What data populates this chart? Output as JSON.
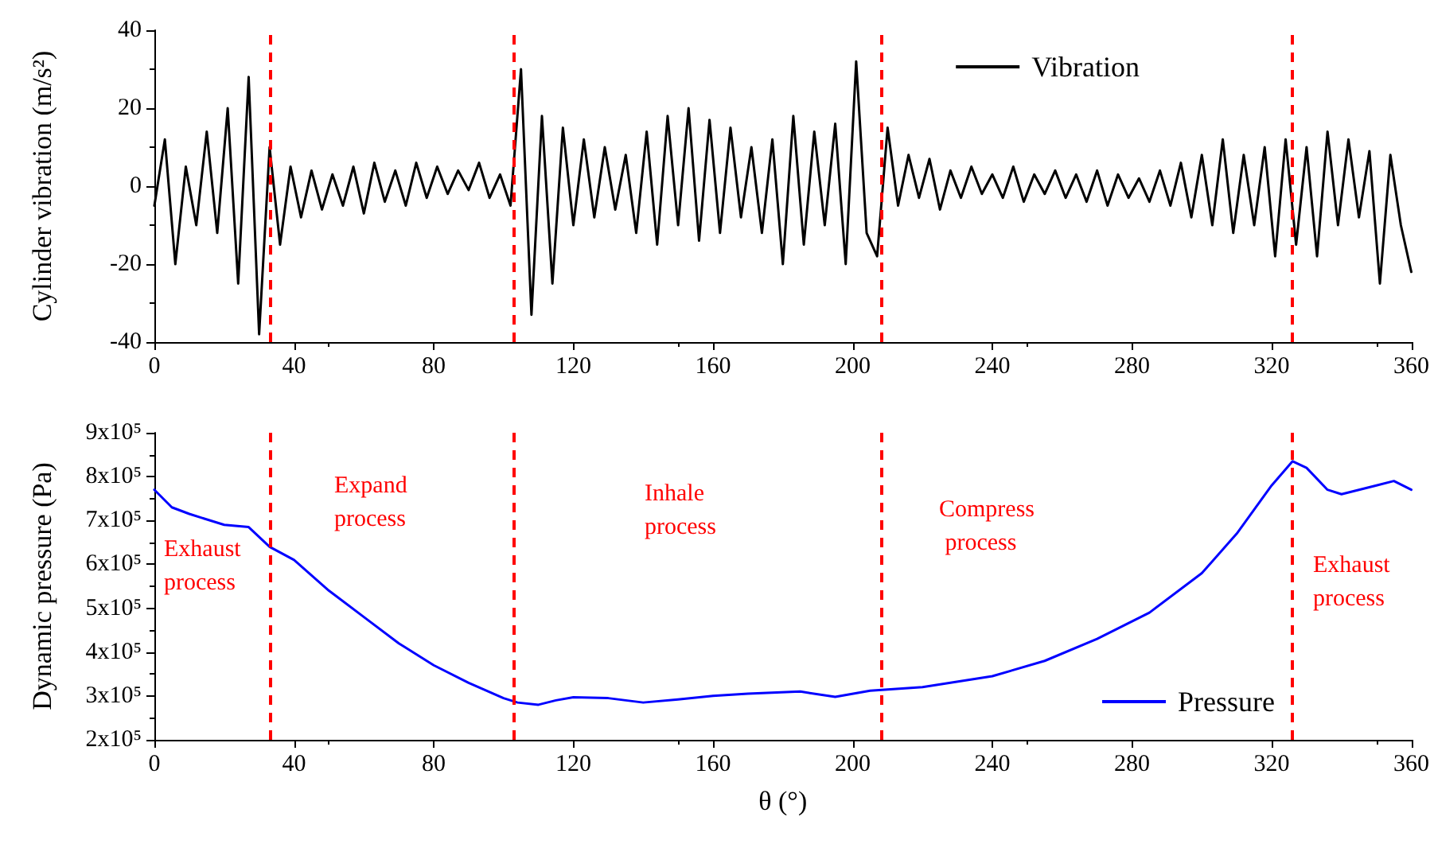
{
  "chart_data": [
    {
      "type": "line",
      "ylabel": "Cylinder vibration (m/s²)",
      "xlim": [
        0,
        360
      ],
      "xticks": [
        0,
        40,
        80,
        120,
        160,
        200,
        240,
        280,
        320,
        360
      ],
      "ylim": [
        -40,
        40
      ],
      "yticks": [
        -40,
        -20,
        0,
        20,
        40
      ],
      "legend": "top right",
      "grid": false,
      "marker": "none",
      "line_style": "solid",
      "series": [
        {
          "name": "Vibration",
          "color": "#000000",
          "x": [
            0,
            3,
            6,
            9,
            12,
            15,
            18,
            21,
            24,
            27,
            30,
            33,
            36,
            39,
            42,
            45,
            48,
            51,
            54,
            57,
            60,
            63,
            66,
            69,
            72,
            75,
            78,
            81,
            84,
            87,
            90,
            93,
            96,
            99,
            102,
            105,
            108,
            111,
            114,
            117,
            120,
            123,
            126,
            129,
            132,
            135,
            138,
            141,
            144,
            147,
            150,
            153,
            156,
            159,
            162,
            165,
            168,
            171,
            174,
            177,
            180,
            183,
            186,
            189,
            192,
            195,
            198,
            201,
            204,
            207,
            210,
            213,
            216,
            219,
            222,
            225,
            228,
            231,
            234,
            237,
            240,
            243,
            246,
            249,
            252,
            255,
            258,
            261,
            264,
            267,
            270,
            273,
            276,
            279,
            282,
            285,
            288,
            291,
            294,
            297,
            300,
            303,
            306,
            309,
            312,
            315,
            318,
            321,
            324,
            327,
            330,
            333,
            336,
            339,
            342,
            345,
            348,
            351,
            354,
            357,
            360
          ],
          "values": [
            -5,
            12,
            -20,
            5,
            -10,
            14,
            -12,
            20,
            -25,
            28,
            -38,
            10,
            -15,
            5,
            -8,
            4,
            -6,
            3,
            -5,
            5,
            -7,
            6,
            -4,
            4,
            -5,
            6,
            -3,
            5,
            -2,
            4,
            -1,
            6,
            -3,
            3,
            -5,
            30,
            -33,
            18,
            -25,
            15,
            -10,
            12,
            -8,
            10,
            -6,
            8,
            -12,
            14,
            -15,
            18,
            -10,
            20,
            -14,
            17,
            -12,
            15,
            -8,
            10,
            -12,
            12,
            -20,
            18,
            -15,
            14,
            -10,
            16,
            -20,
            32,
            -12,
            -18,
            15,
            -5,
            8,
            -3,
            7,
            -6,
            4,
            -3,
            5,
            -2,
            3,
            -3,
            5,
            -4,
            3,
            -2,
            4,
            -3,
            3,
            -4,
            4,
            -5,
            3,
            -3,
            2,
            -4,
            4,
            -5,
            6,
            -8,
            8,
            -10,
            12,
            -12,
            8,
            -10,
            10,
            -18,
            12,
            -15,
            10,
            -18,
            14,
            -10,
            12,
            -8,
            9,
            -25,
            8,
            -10,
            -22
          ]
        }
      ],
      "ref_lines": [
        {
          "axis": "x",
          "value": 33,
          "color": "#ff0000",
          "line_style": "dashed"
        },
        {
          "axis": "x",
          "value": 103,
          "color": "#ff0000",
          "line_style": "dashed"
        },
        {
          "axis": "x",
          "value": 208,
          "color": "#ff0000",
          "line_style": "dashed"
        },
        {
          "axis": "x",
          "value": 326,
          "color": "#ff0000",
          "line_style": "dashed"
        }
      ]
    },
    {
      "type": "line",
      "xlabel": "θ (°)",
      "ylabel": "Dynamic pressure (Pa)",
      "xlim": [
        0,
        360
      ],
      "xticks": [
        0,
        40,
        80,
        120,
        160,
        200,
        240,
        280,
        320,
        360
      ],
      "ylim": [
        200000,
        900000
      ],
      "yticks": [
        {
          "value": 200000,
          "label": "2x10⁵"
        },
        {
          "value": 300000,
          "label": "3x10⁵"
        },
        {
          "value": 400000,
          "label": "4x10⁵"
        },
        {
          "value": 500000,
          "label": "5x10⁵"
        },
        {
          "value": 600000,
          "label": "6x10⁵"
        },
        {
          "value": 700000,
          "label": "7x10⁵"
        },
        {
          "value": 800000,
          "label": "8x10⁵"
        },
        {
          "value": 900000,
          "label": "9x10⁵"
        }
      ],
      "legend": "bottom right",
      "grid": false,
      "marker": "none",
      "line_style": "solid",
      "series": [
        {
          "name": "Pressure",
          "color": "#0000ff",
          "x": [
            0,
            5,
            10,
            20,
            27,
            33,
            40,
            50,
            60,
            70,
            80,
            90,
            100,
            104,
            110,
            115,
            120,
            130,
            140,
            150,
            160,
            170,
            185,
            195,
            205,
            220,
            240,
            255,
            270,
            285,
            300,
            310,
            320,
            326,
            330,
            336,
            340,
            350,
            355,
            360
          ],
          "values": [
            770000,
            730000,
            715000,
            690000,
            685000,
            640000,
            610000,
            540000,
            480000,
            420000,
            370000,
            330000,
            295000,
            285000,
            280000,
            290000,
            297000,
            295000,
            285000,
            292000,
            300000,
            305000,
            310000,
            298000,
            312000,
            320000,
            345000,
            380000,
            430000,
            490000,
            580000,
            670000,
            780000,
            835000,
            820000,
            770000,
            760000,
            780000,
            790000,
            770000
          ]
        }
      ],
      "ref_lines": [
        {
          "axis": "x",
          "value": 33,
          "color": "#ff0000",
          "line_style": "dashed"
        },
        {
          "axis": "x",
          "value": 103,
          "color": "#ff0000",
          "line_style": "dashed"
        },
        {
          "axis": "x",
          "value": 208,
          "color": "#ff0000",
          "line_style": "dashed"
        },
        {
          "axis": "x",
          "value": 326,
          "color": "#ff0000",
          "line_style": "dashed"
        }
      ],
      "annotations": [
        "Exhaust process",
        "Expand process",
        "Inhale process",
        "Compress process",
        "Exhaust process"
      ]
    }
  ]
}
